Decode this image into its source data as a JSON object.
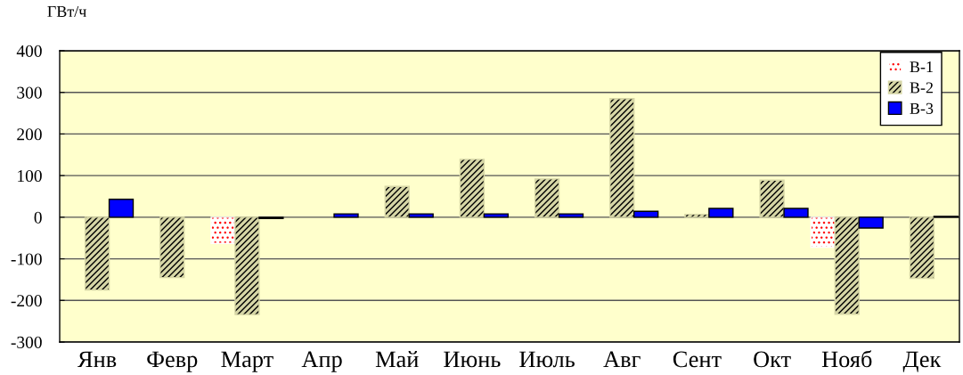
{
  "chart_data": {
    "type": "bar",
    "ylabel": "ГВт/ч",
    "categories": [
      "Янв",
      "Февр",
      "Март",
      "Апр",
      "Май",
      "Июнь",
      "Июль",
      "Авг",
      "Сент",
      "Окт",
      "Нояб",
      "Дек"
    ],
    "series": [
      {
        "name": "В-1",
        "color": "#ffffff",
        "values": [
          null,
          null,
          -63,
          null,
          null,
          null,
          null,
          null,
          null,
          null,
          -72,
          null
        ]
      },
      {
        "name": "В-2",
        "color": "#d6d6a6",
        "values": [
          -175,
          -145,
          -234,
          null,
          74,
          139,
          92,
          285,
          7,
          89,
          -233,
          -147
        ]
      },
      {
        "name": "В-3",
        "color": "#0000ff",
        "values": [
          43,
          null,
          -3,
          8,
          8,
          8,
          8,
          14,
          21,
          21,
          -26,
          2
        ]
      }
    ],
    "ylim": [
      -300,
      400
    ],
    "yticks": [
      -300,
      -200,
      -100,
      0,
      100,
      200,
      300,
      400
    ],
    "grid": "y",
    "legend": "top right"
  }
}
